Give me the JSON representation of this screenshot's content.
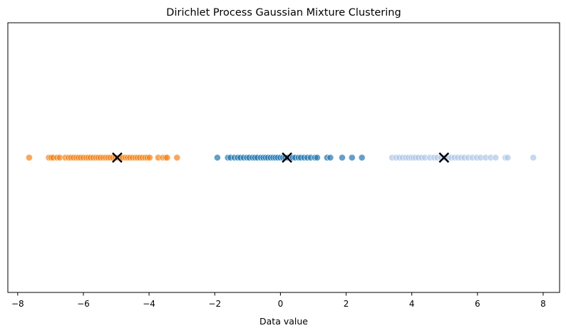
{
  "chart_data": {
    "type": "scatter",
    "title": "Dirichlet Process Gaussian Mixture Clustering",
    "xlabel": "Data value",
    "ylabel": "",
    "xlim": [
      -8.3,
      8.5
    ],
    "xticks": [
      -8,
      -6,
      -4,
      -2,
      0,
      2,
      4,
      6,
      8
    ],
    "xtick_labels": [
      "−8",
      "−6",
      "−4",
      "−2",
      "0",
      "2",
      "4",
      "6",
      "8"
    ],
    "y_axis_visible": false,
    "grid": false,
    "legend": "none",
    "y_value": 0,
    "series": [
      {
        "color": "#ff7f0e",
        "x": [
          -7.65,
          -7.05,
          -6.98,
          -6.92,
          -6.8,
          -6.72,
          -6.55,
          -6.45,
          -6.38,
          -6.3,
          -6.22,
          -6.15,
          -6.08,
          -6.0,
          -5.92,
          -5.85,
          -5.78,
          -5.7,
          -5.62,
          -5.55,
          -5.48,
          -5.4,
          -5.32,
          -5.25,
          -5.18,
          -5.1,
          -5.02,
          -4.95,
          -4.88,
          -4.8,
          -4.72,
          -4.65,
          -4.58,
          -4.5,
          -4.42,
          -4.35,
          -4.28,
          -4.2,
          -4.12,
          -4.05,
          -3.98,
          -3.72,
          -3.58,
          -3.5,
          -3.45,
          -3.15
        ]
      },
      {
        "color": "#1f77b4",
        "x": [
          -1.92,
          -1.6,
          -1.52,
          -1.4,
          -1.3,
          -1.22,
          -1.12,
          -1.02,
          -0.95,
          -0.85,
          -0.78,
          -0.7,
          -0.6,
          -0.52,
          -0.45,
          -0.38,
          -0.3,
          -0.22,
          -0.15,
          -0.08,
          0.0,
          0.08,
          0.15,
          0.22,
          0.3,
          0.38,
          0.45,
          0.55,
          0.62,
          0.72,
          0.82,
          0.92,
          1.05,
          1.12,
          1.42,
          1.52,
          1.88,
          2.18,
          2.48
        ]
      },
      {
        "color": "#aec7e8",
        "x": [
          3.4,
          3.52,
          3.62,
          3.72,
          3.82,
          3.9,
          3.98,
          4.05,
          4.12,
          4.2,
          4.3,
          4.4,
          4.55,
          4.68,
          4.78,
          4.9,
          5.0,
          5.1,
          5.2,
          5.3,
          5.4,
          5.5,
          5.6,
          5.72,
          5.85,
          5.98,
          6.1,
          6.25,
          6.4,
          6.55,
          6.85,
          6.92,
          7.7
        ]
      }
    ],
    "centers": {
      "marker": "x",
      "color": "#000000",
      "x": [
        -4.97,
        0.2,
        4.98
      ]
    }
  }
}
